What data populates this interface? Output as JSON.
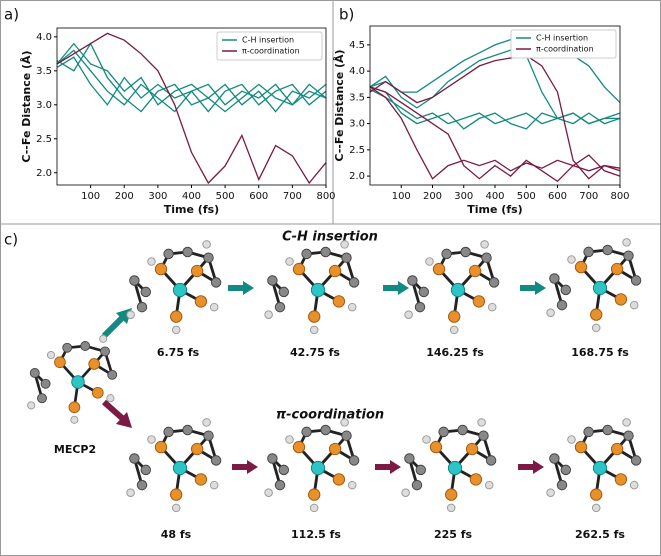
{
  "chart_data": [
    {
      "type": "line",
      "label": "a)",
      "xlabel": "Time (fs)",
      "ylabel": "C--Fe Distance (Å)",
      "x": [
        0,
        50,
        100,
        150,
        200,
        250,
        300,
        350,
        400,
        450,
        500,
        550,
        600,
        650,
        700,
        750,
        800
      ],
      "xlim": [
        0,
        800
      ],
      "xticks": [
        100,
        200,
        300,
        400,
        500,
        600,
        700,
        800
      ],
      "ylim": [
        1.82,
        4.13
      ],
      "yticks": [
        {
          "value": 2,
          "label": "2.0"
        },
        {
          "value": 2.5,
          "label": "2.5"
        },
        {
          "value": 3,
          "label": "3.0"
        },
        {
          "value": 3.5,
          "label": "3.5"
        },
        {
          "value": 4,
          "label": "4.0"
        }
      ],
      "legend": "upper right",
      "series": [
        {
          "name": "C-H insertion",
          "color": "#138a80",
          "values": [
            3.6,
            3.8,
            3.5,
            3.2,
            3.0,
            3.3,
            3.1,
            2.9,
            3.2,
            3.3,
            3.0,
            3.2,
            3.1,
            3.3,
            3.0,
            3.2,
            3.1
          ]
        },
        {
          "name": "C-H insertion",
          "color": "#138a80",
          "values": [
            3.65,
            3.5,
            3.9,
            3.4,
            3.1,
            2.9,
            3.2,
            3.3,
            3.0,
            3.1,
            3.3,
            3.0,
            3.2,
            2.9,
            3.2,
            3.1,
            3.3
          ]
        },
        {
          "name": "C-H insertion",
          "color": "#138a80",
          "values": [
            3.55,
            3.7,
            3.3,
            3.0,
            3.4,
            3.1,
            3.3,
            3.1,
            3.2,
            2.9,
            3.2,
            3.3,
            3.0,
            3.2,
            3.3,
            3.0,
            3.2
          ]
        },
        {
          "name": "C-H insertion",
          "color": "#138a80",
          "values": [
            3.6,
            3.9,
            3.6,
            3.5,
            3.2,
            3.4,
            3.0,
            3.2,
            3.3,
            3.1,
            2.9,
            3.1,
            3.3,
            3.1,
            3.0,
            3.3,
            3.1
          ]
        },
        {
          "name": "π-coordination",
          "color": "#7a1a45",
          "values": [
            3.6,
            3.75,
            3.9,
            4.05,
            3.95,
            3.75,
            3.5,
            3.0,
            2.3,
            1.85,
            2.1,
            2.55,
            1.9,
            2.4,
            2.25,
            1.85,
            2.15
          ]
        }
      ]
    },
    {
      "type": "line",
      "label": "b)",
      "xlabel": "Time (fs)",
      "ylabel": "C--Fe Distance (Å)",
      "x": [
        0,
        50,
        100,
        150,
        200,
        250,
        300,
        350,
        400,
        450,
        500,
        550,
        600,
        650,
        700,
        750,
        800
      ],
      "xlim": [
        0,
        800
      ],
      "xticks": [
        100,
        200,
        300,
        400,
        500,
        600,
        700,
        800
      ],
      "ylim": [
        1.83,
        4.86
      ],
      "yticks": [
        {
          "value": 2,
          "label": "2.0"
        },
        {
          "value": 2.5,
          "label": "2.5"
        },
        {
          "value": 3,
          "label": "3.0"
        },
        {
          "value": 3.5,
          "label": "3.5"
        },
        {
          "value": 4,
          "label": "4.0"
        },
        {
          "value": 4.5,
          "label": "4.5"
        }
      ],
      "legend": "upper right",
      "series": [
        {
          "name": "C-H insertion",
          "color": "#138a80",
          "values": [
            3.7,
            3.8,
            3.6,
            3.6,
            3.8,
            4.0,
            4.2,
            4.35,
            4.5,
            4.6,
            4.7,
            4.65,
            4.5,
            4.3,
            4.1,
            3.7,
            3.4
          ]
        },
        {
          "name": "C-H insertion",
          "color": "#138a80",
          "values": [
            3.7,
            3.9,
            3.5,
            3.3,
            3.5,
            3.8,
            4.0,
            4.2,
            4.3,
            4.4,
            4.3,
            3.6,
            3.1,
            3.2,
            3.0,
            3.1,
            3.2
          ]
        },
        {
          "name": "C-H insertion",
          "color": "#138a80",
          "values": [
            3.65,
            3.5,
            3.3,
            3.1,
            3.2,
            3.0,
            3.1,
            3.2,
            3.0,
            3.1,
            3.2,
            3.0,
            3.1,
            3.2,
            3.0,
            3.1,
            3.1
          ]
        },
        {
          "name": "C-H insertion",
          "color": "#138a80",
          "values": [
            3.7,
            3.6,
            3.2,
            3.0,
            3.1,
            3.2,
            2.9,
            3.1,
            3.2,
            3.0,
            2.9,
            3.2,
            3.1,
            3.0,
            3.2,
            3.0,
            3.1
          ]
        },
        {
          "name": "π-coordination",
          "color": "#7a1a45",
          "values": [
            3.7,
            3.5,
            3.1,
            2.5,
            1.95,
            2.2,
            2.3,
            2.2,
            2.3,
            2.1,
            2.25,
            2.15,
            2.3,
            2.2,
            2.1,
            2.2,
            2.15
          ]
        },
        {
          "name": "π-coordination",
          "color": "#7a1a45",
          "values": [
            3.6,
            3.8,
            3.6,
            3.4,
            3.5,
            3.7,
            3.9,
            4.1,
            4.2,
            4.25,
            4.3,
            4.1,
            3.6,
            2.3,
            1.95,
            2.2,
            2.1
          ]
        },
        {
          "name": "π-coordination",
          "color": "#7a1a45",
          "values": [
            3.7,
            3.6,
            3.4,
            3.2,
            3.0,
            2.8,
            2.2,
            1.95,
            2.2,
            2.0,
            2.3,
            2.1,
            1.9,
            2.2,
            2.4,
            2.1,
            2.0
          ]
        }
      ]
    }
  ],
  "diagram": {
    "label": "c)",
    "start": "MECP2",
    "rows": [
      {
        "title": "C-H insertion",
        "frames": [
          "6.75 fs",
          "42.75 fs",
          "146.25 fs",
          "168.75 fs"
        ]
      },
      {
        "title": "π-coordination",
        "frames": [
          "48 fs",
          "112.5 fs",
          "225 fs",
          "262.5 fs"
        ]
      }
    ]
  }
}
